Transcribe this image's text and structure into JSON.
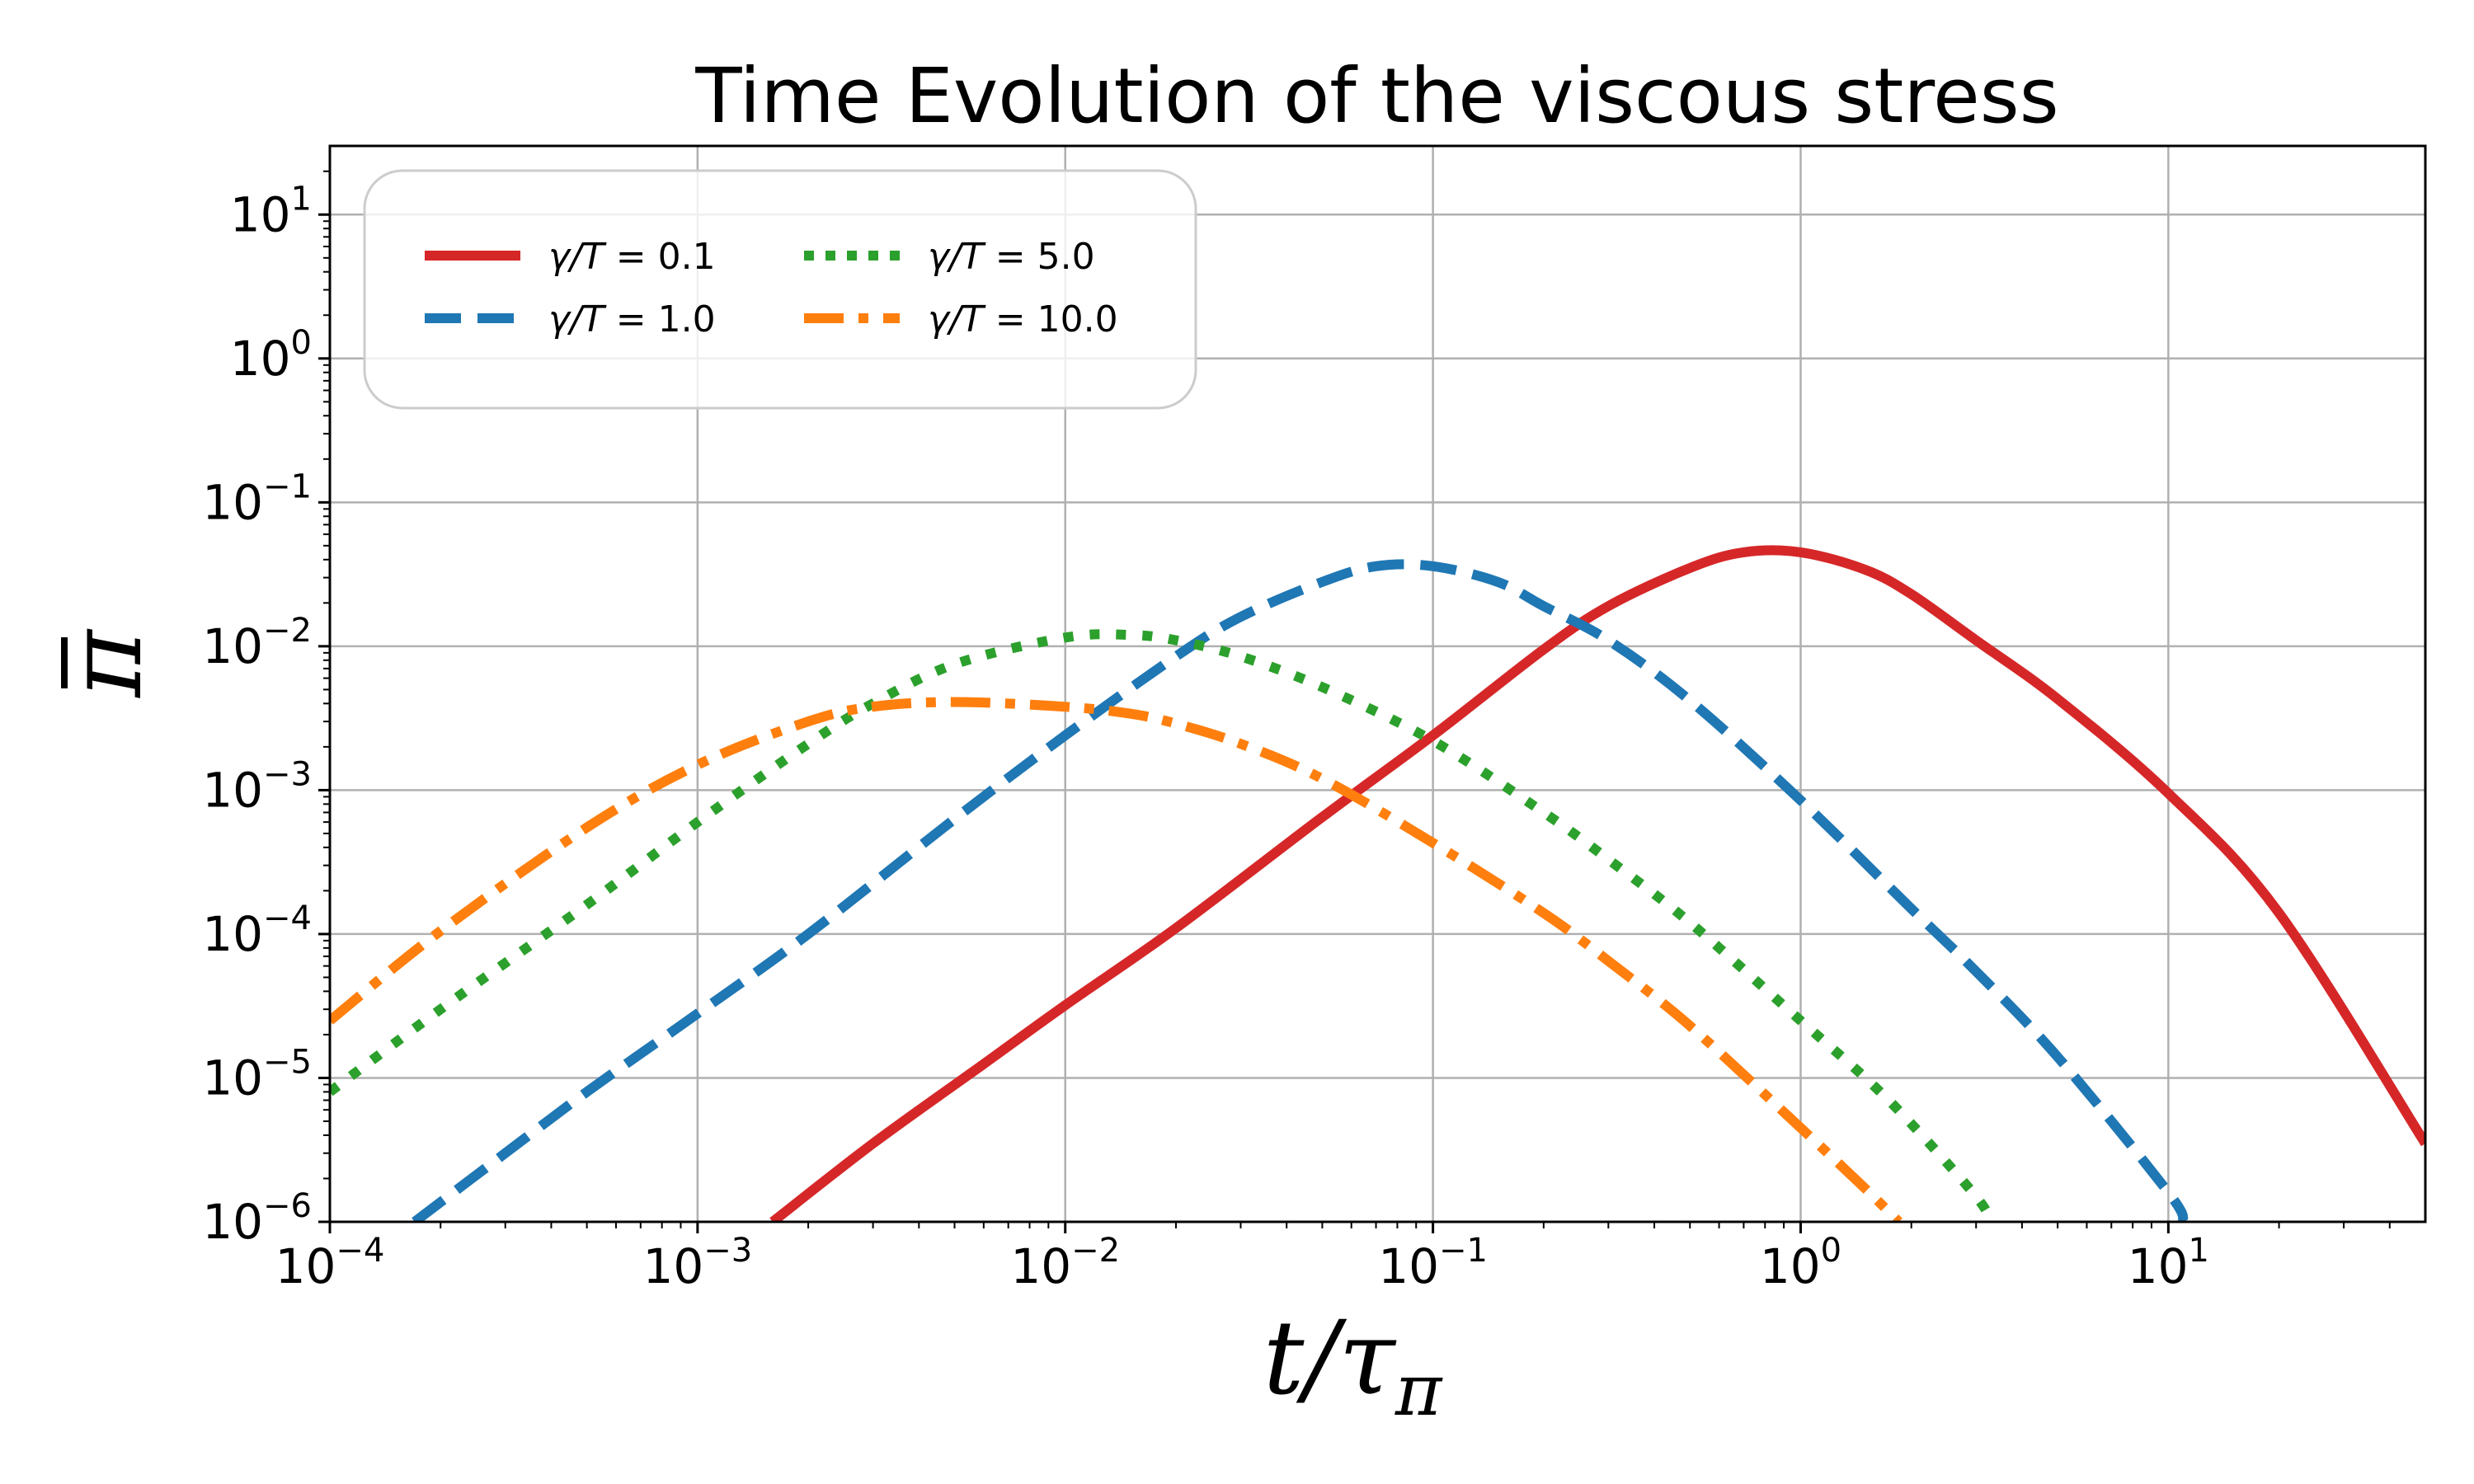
{
  "chart_data": {
    "type": "line",
    "title": "Time Evolution of the viscous stress",
    "xlabel": "t/τ_π",
    "ylabel": "π̄",
    "xscale": "log",
    "yscale": "log",
    "xlim": [
      0.0001,
      50
    ],
    "ylim": [
      1e-06,
      30
    ],
    "grid": true,
    "legend_position": "top-left",
    "x_ticks": [
      {
        "value": 0.0001,
        "base": "10",
        "exp": "−4"
      },
      {
        "value": 0.001,
        "base": "10",
        "exp": "−3"
      },
      {
        "value": 0.01,
        "base": "10",
        "exp": "−2"
      },
      {
        "value": 0.1,
        "base": "10",
        "exp": "−1"
      },
      {
        "value": 1,
        "base": "10",
        "exp": "0"
      },
      {
        "value": 10,
        "base": "10",
        "exp": "1"
      }
    ],
    "y_ticks": [
      {
        "value": 1e-06,
        "base": "10",
        "exp": "−6"
      },
      {
        "value": 1e-05,
        "base": "10",
        "exp": "−5"
      },
      {
        "value": 0.0001,
        "base": "10",
        "exp": "−4"
      },
      {
        "value": 0.001,
        "base": "10",
        "exp": "−3"
      },
      {
        "value": 0.01,
        "base": "10",
        "exp": "−2"
      },
      {
        "value": 0.1,
        "base": "10",
        "exp": "−1"
      },
      {
        "value": 1,
        "base": "10",
        "exp": "0"
      },
      {
        "value": 10,
        "base": "10",
        "exp": "1"
      }
    ],
    "series": [
      {
        "name": "γ/T = 0.1",
        "gamma": "0.1",
        "color": "#d62728",
        "style": "solid",
        "x": [
          0.0016,
          0.003,
          0.006,
          0.01,
          0.02,
          0.05,
          0.1,
          0.2,
          0.3,
          0.5,
          0.7,
          1,
          1.5,
          2,
          3,
          5,
          10,
          20,
          50
        ],
        "y": [
          1e-06,
          3.5e-06,
          1.25e-05,
          3.2e-05,
          0.00011,
          0.00065,
          0.0024,
          0.0095,
          0.019,
          0.035,
          0.045,
          0.045,
          0.034,
          0.023,
          0.011,
          0.0043,
          0.00095,
          0.00014,
          3.5e-06
        ]
      },
      {
        "name": "γ/T = 1.0",
        "gamma": "1.0",
        "color": "#1f77b4",
        "style": "dashed",
        "x": [
          0.00017,
          0.0003,
          0.0005,
          0.001,
          0.002,
          0.005,
          0.01,
          0.02,
          0.03,
          0.05,
          0.07,
          0.1,
          0.15,
          0.2,
          0.3,
          0.5,
          1,
          2,
          3,
          5,
          10,
          11
        ],
        "y": [
          1e-06,
          3e-06,
          8e-06,
          2.8e-05,
          0.0001,
          0.00063,
          0.0024,
          0.0085,
          0.016,
          0.028,
          0.036,
          0.036,
          0.028,
          0.019,
          0.011,
          0.0042,
          0.00085,
          0.00015,
          5.5e-05,
          1.4e-05,
          1.6e-06,
          1e-06
        ]
      },
      {
        "name": "γ/T = 5.0",
        "gamma": "5.0",
        "color": "#2ca02c",
        "style": "dotted",
        "x": [
          0.0001,
          0.0002,
          0.0005,
          0.001,
          0.002,
          0.003,
          0.005,
          0.01,
          0.015,
          0.02,
          0.03,
          0.05,
          0.1,
          0.2,
          0.3,
          0.5,
          1,
          1.5,
          2,
          3,
          3.3
        ],
        "y": [
          8e-06,
          3e-05,
          0.00016,
          0.0006,
          0.0021,
          0.004,
          0.0075,
          0.0115,
          0.012,
          0.011,
          0.0085,
          0.0052,
          0.0022,
          0.0007,
          0.00033,
          0.00012,
          2.5e-05,
          1e-05,
          4.8e-06,
          1.5e-06,
          1e-06
        ]
      },
      {
        "name": "γ/T = 10.0",
        "gamma": "10.0",
        "color": "#ff7f0e",
        "style": "dashdot",
        "x": [
          0.0001,
          0.0002,
          0.0005,
          0.001,
          0.002,
          0.003,
          0.005,
          0.01,
          0.015,
          0.02,
          0.03,
          0.05,
          0.1,
          0.2,
          0.3,
          0.5,
          1,
          1.5,
          1.85
        ],
        "y": [
          2.5e-05,
          0.000105,
          0.00055,
          0.0015,
          0.003,
          0.0038,
          0.0041,
          0.0038,
          0.0034,
          0.0029,
          0.0021,
          0.0012,
          0.00043,
          0.00014,
          6.5e-05,
          2.3e-05,
          4.5e-06,
          1.7e-06,
          1e-06
        ]
      }
    ]
  }
}
